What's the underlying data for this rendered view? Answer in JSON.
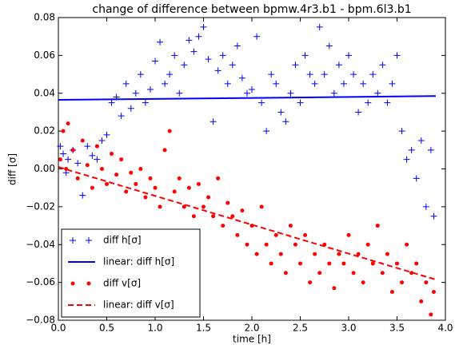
{
  "chart_data": {
    "type": "scatter",
    "title": "change of difference between bpmw.4r3.b1 - bpm.6l3.b1",
    "xlabel": "time [h]",
    "ylabel": "diff [σ]",
    "xlim": [
      0,
      4
    ],
    "ylim": [
      -0.08,
      0.08
    ],
    "xticks": [
      {
        "value": 0,
        "label": "0.0"
      },
      {
        "value": 0.5,
        "label": "0.5"
      },
      {
        "value": 1,
        "label": "1.0"
      },
      {
        "value": 1.5,
        "label": "1.5"
      },
      {
        "value": 2,
        "label": "2.0"
      },
      {
        "value": 2.5,
        "label": "2.5"
      },
      {
        "value": 3,
        "label": "3.0"
      },
      {
        "value": 3.5,
        "label": "3.5"
      },
      {
        "value": 4,
        "label": "4.0"
      }
    ],
    "yticks": [
      {
        "value": -0.08,
        "label": "−0.08"
      },
      {
        "value": -0.06,
        "label": "−0.06"
      },
      {
        "value": -0.04,
        "label": "−0.04"
      },
      {
        "value": -0.02,
        "label": "−0.02"
      },
      {
        "value": 0,
        "label": "0.00"
      },
      {
        "value": 0.02,
        "label": "0.02"
      },
      {
        "value": 0.04,
        "label": "0.04"
      },
      {
        "value": 0.06,
        "label": "0.06"
      },
      {
        "value": 0.08,
        "label": "0.08"
      }
    ],
    "grid": false,
    "legend": "lower left",
    "series": [
      {
        "name": "diff h[σ]",
        "color": "#0000ff",
        "marker": "plus",
        "x": [
          0.02,
          0.05,
          0.08,
          0.1,
          0.15,
          0.2,
          0.25,
          0.3,
          0.35,
          0.4,
          0.45,
          0.5,
          0.55,
          0.6,
          0.65,
          0.7,
          0.75,
          0.8,
          0.85,
          0.9,
          0.95,
          1.0,
          1.05,
          1.1,
          1.15,
          1.2,
          1.25,
          1.3,
          1.35,
          1.4,
          1.45,
          1.5,
          1.55,
          1.6,
          1.65,
          1.7,
          1.75,
          1.8,
          1.85,
          1.9,
          1.95,
          2.0,
          2.05,
          2.1,
          2.15,
          2.2,
          2.25,
          2.3,
          2.35,
          2.4,
          2.45,
          2.5,
          2.55,
          2.6,
          2.65,
          2.7,
          2.75,
          2.8,
          2.85,
          2.9,
          2.95,
          3.0,
          3.05,
          3.1,
          3.15,
          3.2,
          3.25,
          3.3,
          3.35,
          3.4,
          3.45,
          3.5,
          3.55,
          3.6,
          3.65,
          3.7,
          3.75,
          3.8,
          3.85,
          3.88
        ],
        "values": [
          0.012,
          0.008,
          -0.002,
          0.005,
          0.01,
          0.003,
          -0.014,
          0.012,
          0.007,
          0.005,
          0.015,
          0.018,
          0.035,
          0.038,
          0.028,
          0.045,
          0.032,
          0.04,
          0.05,
          0.035,
          0.042,
          0.057,
          0.067,
          0.045,
          0.05,
          0.06,
          0.04,
          0.055,
          0.068,
          0.062,
          0.07,
          0.075,
          0.058,
          0.025,
          0.052,
          0.06,
          0.045,
          0.055,
          0.065,
          0.048,
          0.04,
          0.042,
          0.07,
          0.035,
          0.02,
          0.05,
          0.045,
          0.03,
          0.025,
          0.04,
          0.055,
          0.035,
          0.06,
          0.05,
          0.045,
          0.075,
          0.05,
          0.065,
          0.04,
          0.055,
          0.045,
          0.06,
          0.05,
          0.03,
          0.045,
          0.035,
          0.05,
          0.04,
          0.055,
          0.035,
          0.045,
          0.06,
          0.02,
          0.005,
          0.01,
          -0.005,
          0.015,
          -0.02,
          0.01,
          -0.025
        ]
      },
      {
        "name": "linear: diff h[σ]",
        "color": "#0000ff",
        "linestyle": "solid",
        "x": [
          0,
          3.9
        ],
        "values": [
          0.0365,
          0.0385
        ]
      },
      {
        "name": "diff v[σ]",
        "color": "#ff0000",
        "marker": "dot",
        "x": [
          0.02,
          0.05,
          0.08,
          0.1,
          0.15,
          0.2,
          0.25,
          0.3,
          0.35,
          0.4,
          0.45,
          0.5,
          0.55,
          0.6,
          0.65,
          0.7,
          0.75,
          0.8,
          0.85,
          0.9,
          0.95,
          1.0,
          1.05,
          1.1,
          1.15,
          1.2,
          1.25,
          1.3,
          1.35,
          1.4,
          1.45,
          1.5,
          1.55,
          1.6,
          1.65,
          1.7,
          1.75,
          1.8,
          1.85,
          1.9,
          1.95,
          2.0,
          2.05,
          2.1,
          2.15,
          2.2,
          2.25,
          2.3,
          2.35,
          2.4,
          2.45,
          2.5,
          2.55,
          2.6,
          2.65,
          2.7,
          2.75,
          2.8,
          2.85,
          2.9,
          2.95,
          3.0,
          3.05,
          3.1,
          3.15,
          3.2,
          3.25,
          3.3,
          3.35,
          3.4,
          3.45,
          3.5,
          3.55,
          3.6,
          3.65,
          3.7,
          3.75,
          3.8,
          3.85,
          3.88
        ],
        "values": [
          0.005,
          0.02,
          0.0,
          0.024,
          0.01,
          -0.005,
          0.015,
          0.002,
          -0.01,
          0.012,
          0.0,
          -0.008,
          0.008,
          -0.003,
          0.005,
          -0.012,
          -0.002,
          -0.008,
          0.0,
          -0.015,
          -0.005,
          -0.01,
          -0.02,
          0.01,
          0.02,
          -0.012,
          -0.005,
          -0.02,
          -0.01,
          -0.025,
          -0.008,
          -0.02,
          -0.015,
          -0.025,
          -0.005,
          -0.03,
          -0.018,
          -0.025,
          -0.035,
          -0.022,
          -0.04,
          -0.03,
          -0.045,
          -0.02,
          -0.04,
          -0.05,
          -0.035,
          -0.045,
          -0.055,
          -0.03,
          -0.04,
          -0.05,
          -0.035,
          -0.06,
          -0.045,
          -0.055,
          -0.04,
          -0.05,
          -0.063,
          -0.045,
          -0.05,
          -0.035,
          -0.055,
          -0.045,
          -0.06,
          -0.04,
          -0.05,
          -0.03,
          -0.055,
          -0.045,
          -0.065,
          -0.05,
          -0.06,
          -0.04,
          -0.055,
          -0.05,
          -0.07,
          -0.06,
          -0.077,
          -0.065
        ]
      },
      {
        "name": "linear: diff v[σ]",
        "color": "#ff0000",
        "linestyle": "dashed",
        "x": [
          0,
          3.9
        ],
        "values": [
          0.001,
          -0.0585
        ]
      }
    ]
  }
}
